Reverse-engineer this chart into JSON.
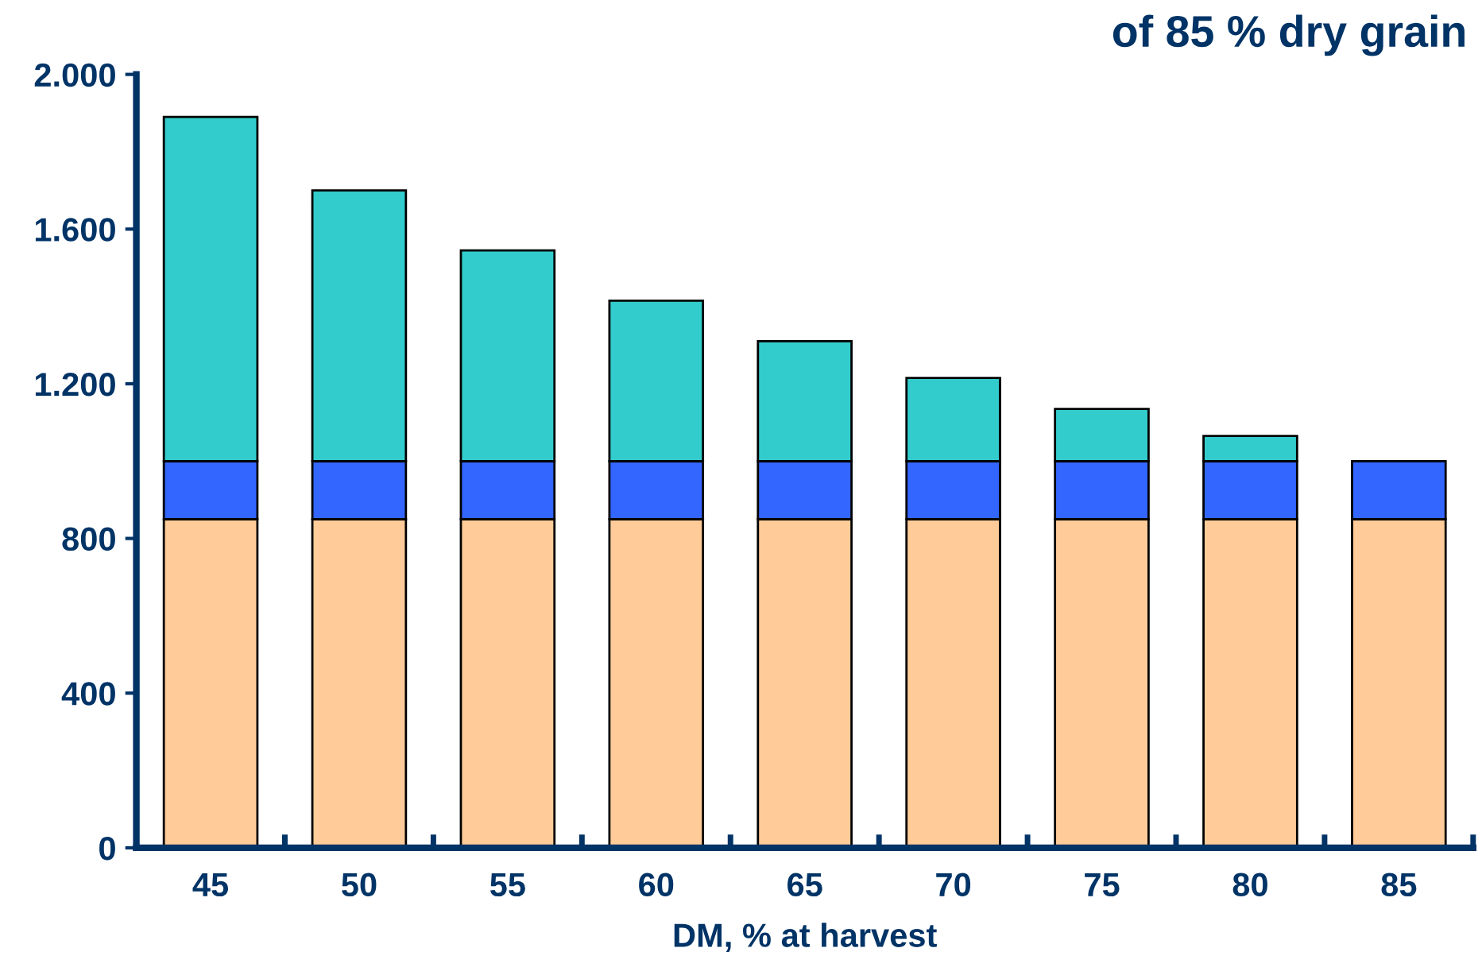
{
  "chart_data": {
    "type": "bar",
    "title": "of 85 % dry grain",
    "xlabel": "DM, % at harvest",
    "categories": [
      "45",
      "50",
      "55",
      "60",
      "65",
      "70",
      "75",
      "80",
      "85"
    ],
    "stacked": true,
    "series": [
      {
        "color": "#ffcc99",
        "values": [
          850,
          850,
          850,
          850,
          850,
          850,
          850,
          850,
          850
        ]
      },
      {
        "color": "#3366ff",
        "values": [
          150,
          150,
          150,
          150,
          150,
          150,
          150,
          150,
          150
        ]
      },
      {
        "color": "#33cccc",
        "values": [
          890,
          700,
          545,
          415,
          310,
          215,
          135,
          65,
          0
        ]
      }
    ],
    "ylim": [
      0,
      2000
    ],
    "yticks": [
      0,
      400,
      800,
      {
        "value": 1200,
        "label": "1.200"
      },
      {
        "value": 1600,
        "label": "1.600"
      },
      {
        "value": 2000,
        "label": "2.000"
      }
    ],
    "grid": false,
    "legend": false
  }
}
